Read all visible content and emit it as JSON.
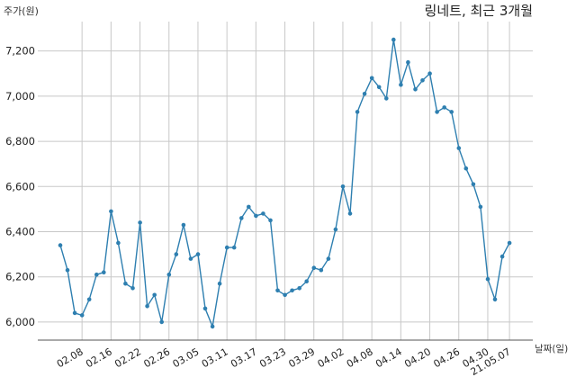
{
  "colors": {
    "line": "#2e7fb0",
    "marker": "#2e7fb0",
    "grid": "#c8c8c8",
    "axis": "#555555"
  },
  "chart_data": {
    "type": "line",
    "title": "링네트, 최근 3개월",
    "ylabel": "주가(원)",
    "xlabel": "날짜(일)",
    "ylim": [
      5920,
      7330
    ],
    "yticks": [
      6000,
      6200,
      6400,
      6600,
      6800,
      7000,
      7200
    ],
    "ytick_labels": [
      "6,000",
      "6,200",
      "6,400",
      "6,600",
      "6,800",
      "7,000",
      "7,200"
    ],
    "xticks": [
      {
        "index": 3,
        "label": "02.08"
      },
      {
        "index": 7,
        "label": "02.16"
      },
      {
        "index": 11,
        "label": "02.22"
      },
      {
        "index": 15,
        "label": "02.26"
      },
      {
        "index": 19,
        "label": "03.05"
      },
      {
        "index": 23,
        "label": "03.11"
      },
      {
        "index": 27,
        "label": "03.17"
      },
      {
        "index": 31,
        "label": "03.23"
      },
      {
        "index": 35,
        "label": "03.29"
      },
      {
        "index": 39,
        "label": "04.02"
      },
      {
        "index": 43,
        "label": "04.08"
      },
      {
        "index": 47,
        "label": "04.14"
      },
      {
        "index": 51,
        "label": "04.20"
      },
      {
        "index": 55,
        "label": "04.26"
      },
      {
        "index": 59,
        "label": "04.30"
      },
      {
        "index": 62,
        "label": "21.05.07"
      }
    ],
    "grid": true,
    "series": [
      {
        "values": [
          6340,
          6230,
          6040,
          6030,
          6100,
          6210,
          6220,
          6490,
          6350,
          6170,
          6150,
          6440,
          6070,
          6120,
          6000,
          6210,
          6300,
          6430,
          6280,
          6300,
          6060,
          5980,
          6170,
          6330,
          6330,
          6460,
          6510,
          6470,
          6480,
          6450,
          6140,
          6120,
          6140,
          6150,
          6180,
          6240,
          6230,
          6280,
          6410,
          6600,
          6480,
          6930,
          7010,
          7080,
          7040,
          6990,
          7250,
          7050,
          7150,
          7030,
          7070,
          7100,
          6930,
          6950,
          6930,
          6770,
          6680,
          6610,
          6510,
          6190,
          6100,
          6290,
          6350
        ]
      }
    ]
  }
}
